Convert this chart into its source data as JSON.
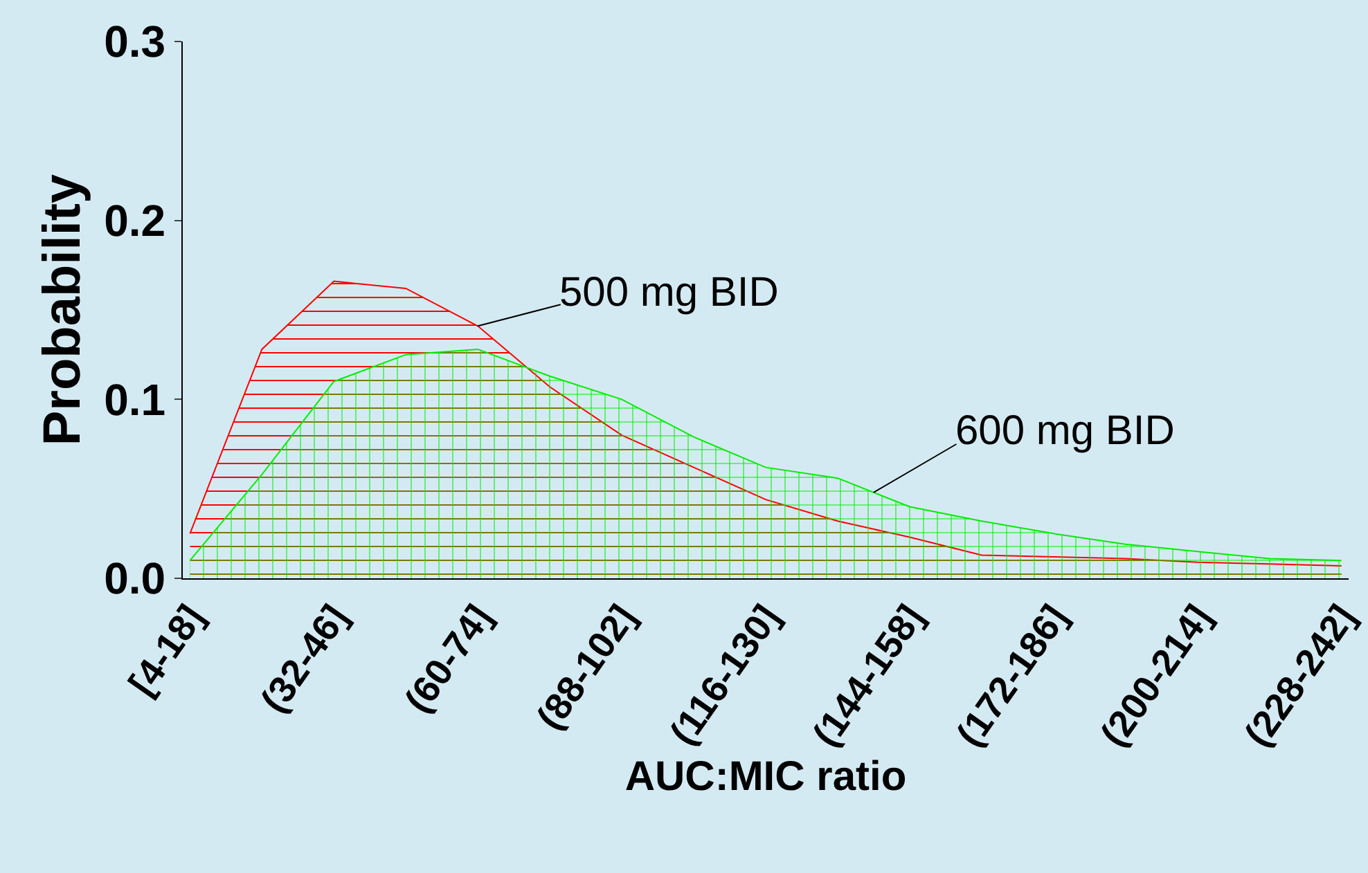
{
  "chart_data": {
    "type": "area",
    "xlabel": "AUC:MIC ratio",
    "ylabel": "Probability",
    "categories": [
      "[4-18]",
      null,
      "(32-46]",
      null,
      "(60-74]",
      null,
      "(88-102]",
      null,
      "(116-130]",
      null,
      "(144-158]",
      null,
      "(172-186]",
      null,
      "(200-214]",
      null,
      "(228-242]"
    ],
    "series": [
      {
        "name": "500 mg BID",
        "color": "#ff0000",
        "values": [
          0.025,
          0.128,
          0.166,
          0.162,
          0.141,
          0.107,
          0.08,
          0.062,
          0.044,
          0.032,
          0.023,
          0.013,
          0.012,
          0.011,
          0.009,
          0.008,
          0.007
        ]
      },
      {
        "name": "600 mg BID",
        "color": "#00ee00",
        "values": [
          0.01,
          0.058,
          0.11,
          0.125,
          0.128,
          0.113,
          0.1,
          0.079,
          0.062,
          0.056,
          0.04,
          0.032,
          0.025,
          0.019,
          0.015,
          0.011,
          0.01
        ]
      }
    ],
    "ylim": [
      0,
      0.3
    ],
    "yticks": [
      {
        "value": 0,
        "label": "0.0"
      },
      0.1,
      0.2,
      0.3
    ],
    "grid": false,
    "legend": false
  }
}
